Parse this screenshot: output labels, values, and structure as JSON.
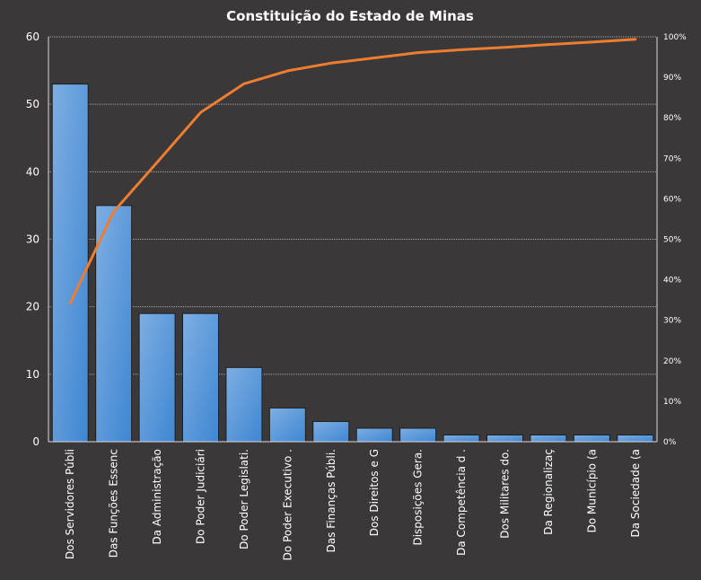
{
  "chart_data": {
    "type": "bar",
    "title": "Constituição do Estado de Minas",
    "categories": [
      "Dos Servidores Públi",
      "Das Funções Essenc",
      "Da Administração",
      "Do Poder Judiciári",
      "Do Poder Legislati.",
      "Do Poder Executivo .",
      "Das Finanças Públi.",
      "Dos Direitos e G",
      "Disposições Gera.",
      "Da Competência d .",
      "Dos Militares do.",
      "Da Regionalizaç",
      "Do Município (a",
      "Da Sociedade (a"
    ],
    "values": [
      53,
      35,
      19,
      19,
      11,
      5,
      3,
      2,
      2,
      1,
      1,
      1,
      1,
      1
    ],
    "cumulative_percent": [
      34.2,
      56.8,
      69.0,
      81.3,
      88.4,
      91.6,
      93.5,
      94.8,
      96.1,
      96.8,
      97.4,
      98.1,
      98.7,
      99.4
    ],
    "ylim": [
      0,
      60
    ],
    "yticks": [
      0,
      10,
      20,
      30,
      40,
      50,
      60
    ],
    "y2lim": [
      0,
      100
    ],
    "y2ticks": [
      "0%",
      "10%",
      "20%",
      "30%",
      "40%",
      "50%",
      "60%",
      "70%",
      "80%",
      "90%",
      "100%"
    ],
    "grid": true,
    "legend": "none",
    "colors": {
      "bar": "#5b9bd5",
      "line": "#ed7d31",
      "background": "#3a3838"
    }
  }
}
